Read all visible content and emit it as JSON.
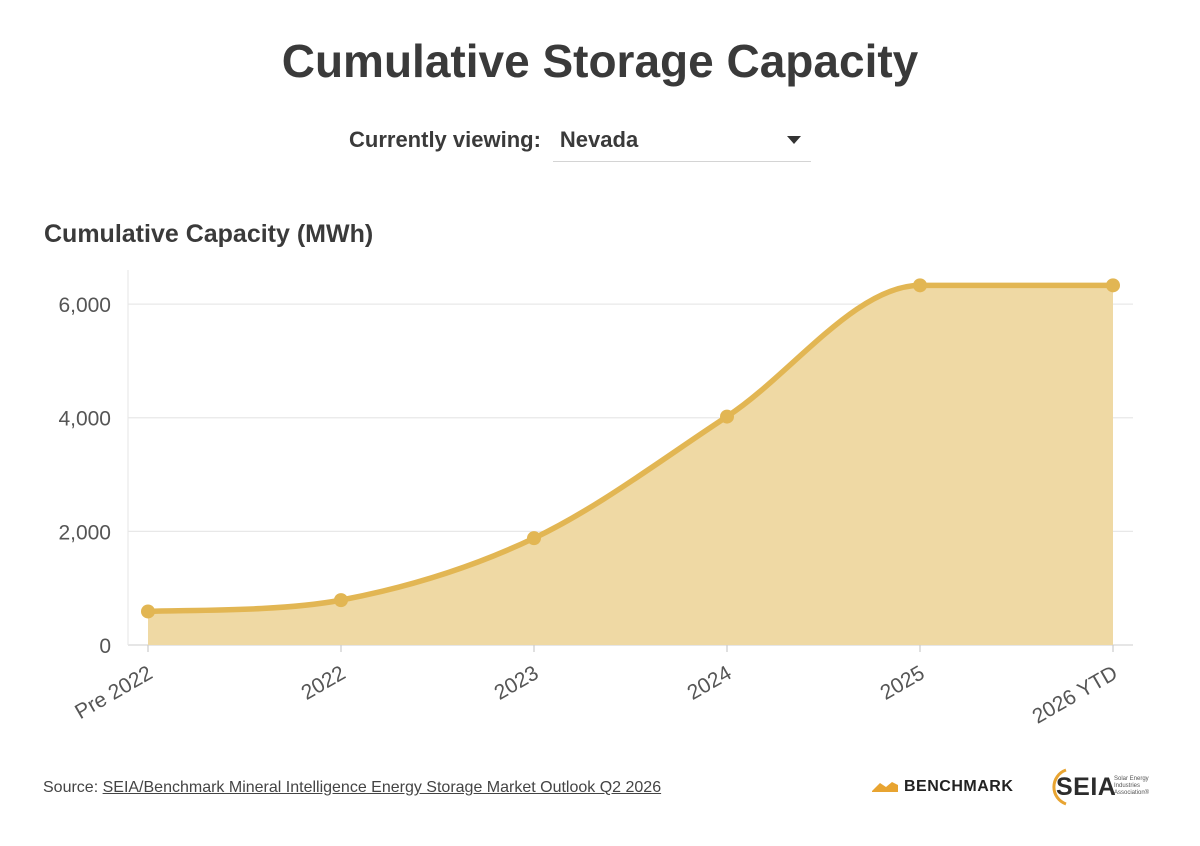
{
  "page": {
    "title": "Cumulative Storage Capacity",
    "selector_label": "Currently viewing:",
    "selector_value": "Nevada",
    "source_prefix": "Source: ",
    "source_link": "SEIA/Benchmark Mineral Intelligence Energy Storage Market Outlook Q2 2026"
  },
  "logos": {
    "benchmark": "BENCHMARK",
    "seia": "SEIA",
    "seia_tagline": "Solar Energy Industries Association®"
  },
  "chart_data": {
    "type": "area",
    "title": "Cumulative Storage Capacity",
    "ylabel": "Cumulative Capacity (MWh)",
    "xlabel": "",
    "categories": [
      "Pre 2022",
      "2022",
      "2023",
      "2024",
      "2025",
      "2026 YTD"
    ],
    "series": [
      {
        "values": [
          590,
          790,
          1880,
          4020,
          6330,
          6330
        ]
      }
    ],
    "ylim": [
      0,
      6600
    ],
    "yticks": [
      0,
      2000,
      4000,
      6000
    ],
    "ytick_labels": [
      "0",
      "2,000",
      "4,000",
      "6,000"
    ],
    "grid": true,
    "legend": "none",
    "colors": {
      "line": "#e2b653",
      "fill": "#efd9a4",
      "grid": "#e8e8e8",
      "tick_text": "#555555"
    }
  }
}
